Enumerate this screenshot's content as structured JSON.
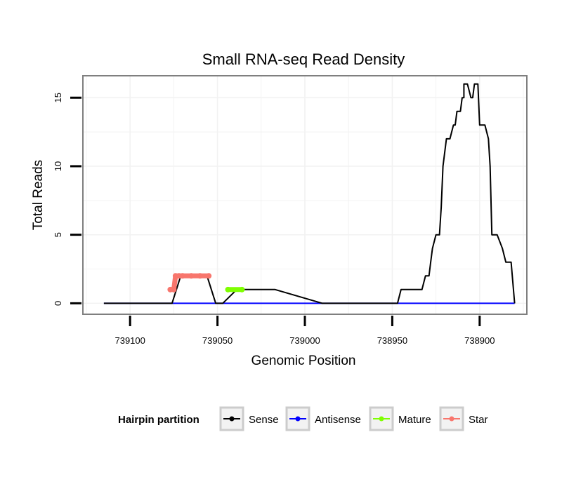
{
  "chart_data": {
    "type": "line",
    "title": "Small RNA-seq Read Density",
    "xlabel": "Genomic Position",
    "ylabel": "Total Reads",
    "x_reversed": true,
    "xlim": [
      739127,
      738873
    ],
    "ylim": [
      -0.8,
      16.6
    ],
    "x_ticks": [
      739100,
      739050,
      739000,
      738950,
      738900
    ],
    "x_tick_labels": [
      "739100",
      "739050",
      "739000",
      "738950",
      "738900"
    ],
    "y_ticks": [
      0,
      5,
      10,
      15
    ],
    "y_tick_labels": [
      "0",
      "5",
      "10",
      "15"
    ],
    "grid": true,
    "legend": {
      "title": "Hairpin partition",
      "position": "bottom",
      "entries": [
        "Sense",
        "Antisense",
        "Mature",
        "Star"
      ]
    },
    "series": [
      {
        "name": "Sense",
        "color": "#000000",
        "x": [
          739115,
          739079,
          739076,
          739071,
          739063,
          739061,
          739056,
          739051,
          739047,
          739039,
          739017,
          738990,
          738960,
          738947,
          738945,
          738942,
          738941,
          738938,
          738936,
          738934,
          738933,
          738931,
          738929,
          738928,
          738927,
          738925,
          738923,
          738922,
          738921,
          738919,
          738917,
          738915,
          738914,
          738913,
          738911,
          738910,
          738909,
          738909,
          738907,
          738905,
          738904,
          738903,
          738902,
          738901,
          738900,
          738899,
          738897,
          738895,
          738894,
          738893,
          738891,
          738890,
          738887,
          738887,
          738885,
          738882,
          738880
        ],
        "values": [
          0,
          0,
          0,
          2,
          2,
          2,
          2,
          0,
          0,
          1,
          1,
          0,
          0,
          0,
          1,
          1,
          1,
          1,
          1,
          1,
          1,
          2,
          2,
          3,
          4,
          5,
          5,
          7,
          10,
          12,
          12,
          13,
          13,
          14,
          14,
          15,
          15,
          16,
          16,
          15,
          15,
          16,
          16,
          16,
          13,
          13,
          13,
          12,
          10,
          5,
          5,
          5,
          4,
          4,
          3,
          3,
          0
        ]
      },
      {
        "name": "Antisense",
        "color": "#0000ff",
        "x": [
          739115,
          738880
        ],
        "values": [
          0,
          0
        ]
      },
      {
        "name": "Mature",
        "color": "#7fff00",
        "x": [
          739044,
          739036
        ],
        "values": [
          1,
          1
        ]
      },
      {
        "name": "Star",
        "color": "#f8766d",
        "x": [
          739077,
          739075,
          739074,
          739072,
          739070,
          739065,
          739060,
          739055
        ],
        "values": [
          1,
          1,
          2,
          2,
          2,
          2,
          2,
          2
        ]
      }
    ]
  }
}
